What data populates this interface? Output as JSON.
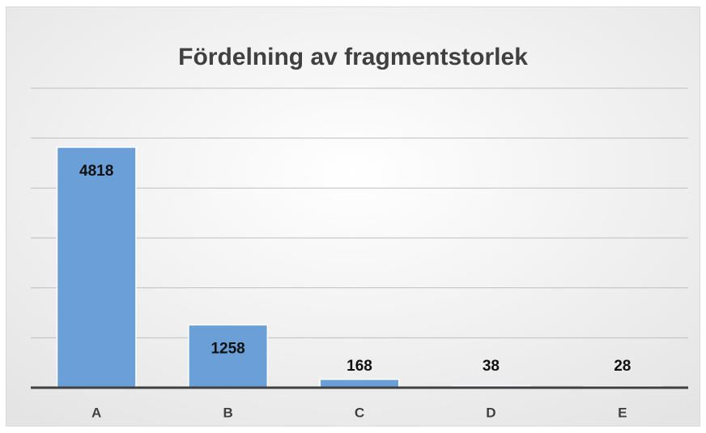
{
  "chart_data": {
    "type": "bar",
    "title": "Fördelning av fragmentstorlek",
    "categories": [
      "A",
      "B",
      "C",
      "D",
      "E"
    ],
    "values": [
      4818,
      1258,
      168,
      38,
      28
    ],
    "color": "#6a9fd8",
    "ylim": [
      0,
      6000
    ],
    "yticks": [
      0,
      1000,
      2000,
      3000,
      4000,
      5000,
      6000
    ],
    "grid": true
  }
}
